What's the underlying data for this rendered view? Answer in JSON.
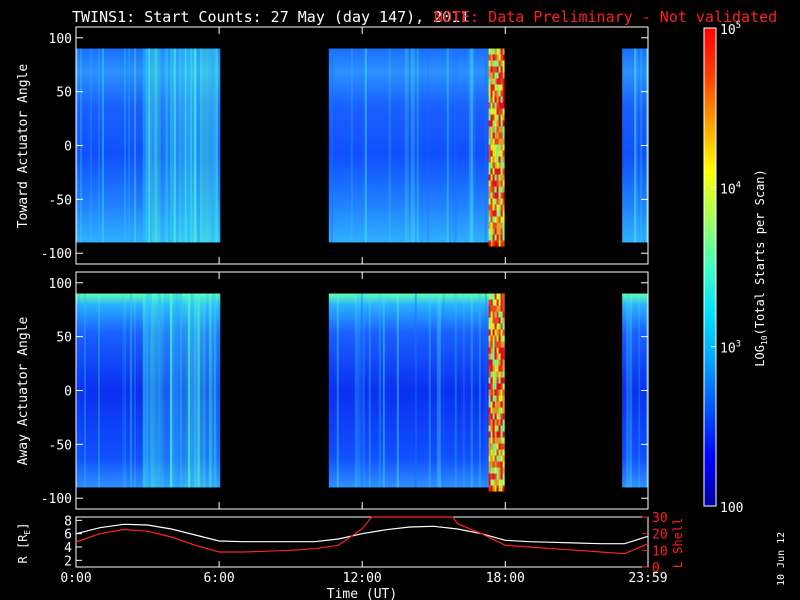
{
  "title": {
    "main": "TWINS1: Start Counts: 27 May (day 147), 2011",
    "note": "NOTE: Data Preliminary - Not validated"
  },
  "stamp": "10 Jun 12",
  "colors": {
    "background": "#000000",
    "axes": "#ffffff",
    "note_text": "#ff2020",
    "l_shell_line": "#ff2020",
    "r_line": "#ffffff",
    "colormap": [
      "#0000a0",
      "#0000ff",
      "#0050ff",
      "#00a0ff",
      "#00e0ff",
      "#40ffc0",
      "#a0ff60",
      "#ffff00",
      "#ffa000",
      "#ff4000",
      "#ff0000"
    ]
  },
  "colorbar": {
    "label_prefix": "LOG",
    "label_sub": "10",
    "label_suffix": "(Total Starts per Scan)",
    "ticks": [
      {
        "text_base": "10",
        "text_exp": "5",
        "value": 100000
      },
      {
        "text_base": "10",
        "text_exp": "4",
        "value": 10000
      },
      {
        "text_base": "10",
        "text_exp": "3",
        "value": 1000
      },
      {
        "text": "100",
        "value": 100
      }
    ]
  },
  "chart_data": [
    {
      "type": "heatmap",
      "ylabel": "Toward Actuator Angle",
      "ylim": [
        -110,
        110
      ],
      "yticks": [
        "100",
        "50",
        "0",
        "-50",
        "-100"
      ],
      "ytick_values": [
        100,
        50,
        0,
        -50,
        -100
      ],
      "x_unit": "hours UT",
      "xlim": [
        0,
        23.983
      ],
      "data_intervals_hours": [
        [
          0,
          6.05
        ],
        [
          10.6,
          17.95
        ],
        [
          22.9,
          23.983
        ]
      ],
      "angle_range": [
        -90,
        90
      ]
    },
    {
      "type": "heatmap",
      "ylabel": "Away Actuator Angle",
      "ylim": [
        -110,
        110
      ],
      "yticks": [
        "100",
        "50",
        "0",
        "-50",
        "-100"
      ],
      "ytick_values": [
        100,
        50,
        0,
        -50,
        -100
      ],
      "x_unit": "hours UT",
      "xlim": [
        0,
        23.983
      ],
      "data_intervals_hours": [
        [
          0,
          6.05
        ],
        [
          10.6,
          17.95
        ],
        [
          22.9,
          23.983
        ]
      ],
      "angle_range": [
        -90,
        90
      ]
    },
    {
      "type": "line",
      "ylabel_left_base": "R [R",
      "ylabel_left_sub": "E",
      "ylabel_left_end": "]",
      "ylabel_right": "L Shell",
      "xlabel": "Time (UT)",
      "xticks": [
        "0:00",
        "6:00",
        "12:00",
        "18:00",
        "23:59"
      ],
      "xtick_values": [
        0,
        6,
        12,
        18,
        23.983
      ],
      "xlim": [
        0,
        23.983
      ],
      "yticks_left": [
        "8",
        "6",
        "4",
        "2"
      ],
      "ytick_left_values": [
        8,
        6,
        4,
        2
      ],
      "ylim_left": [
        1,
        8.5
      ],
      "yticks_right": [
        "30",
        "20",
        "10",
        "0"
      ],
      "ytick_right_values": [
        30,
        20,
        10,
        0
      ],
      "ylim_right": [
        0,
        30
      ],
      "series": [
        {
          "name": "R",
          "x": [
            0,
            1,
            2,
            3,
            4,
            5,
            6,
            7,
            8,
            9,
            10,
            11,
            12,
            13,
            14,
            15,
            16,
            17,
            18,
            19,
            20,
            21,
            22,
            23,
            23.983
          ],
          "y": [
            6.0,
            6.9,
            7.4,
            7.3,
            6.7,
            5.8,
            4.9,
            4.8,
            4.8,
            4.8,
            4.8,
            5.2,
            6.0,
            6.6,
            7.0,
            7.1,
            6.7,
            6.0,
            5.0,
            4.8,
            4.7,
            4.6,
            4.5,
            4.5,
            5.6
          ]
        },
        {
          "name": "L Shell",
          "x": [
            0,
            1,
            2,
            3,
            4,
            5,
            6,
            7,
            8,
            9,
            10,
            11,
            12,
            12.4,
            15.8,
            16,
            17,
            18,
            19,
            20,
            21,
            22,
            23,
            23.983
          ],
          "y": [
            15,
            20,
            22.5,
            21.5,
            18,
            13,
            9,
            9,
            9.5,
            10,
            11,
            13,
            23,
            30,
            30,
            26,
            20,
            13,
            12,
            11,
            10,
            9,
            8,
            14
          ]
        }
      ]
    }
  ]
}
